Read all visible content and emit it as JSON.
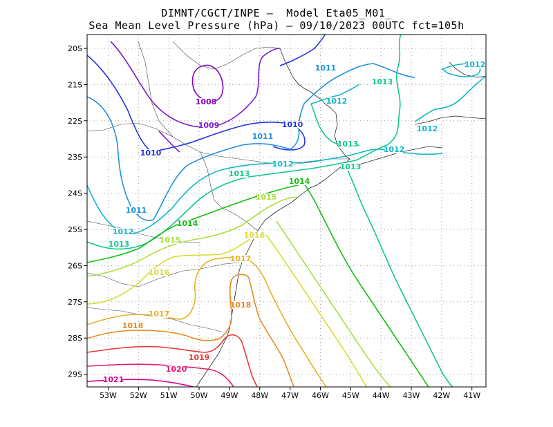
{
  "title_line1": "DIMNT/CGCT/INPE –  Model Eta05_M01_",
  "title_line2": "Sea Mean Level Pressure (hPa) – 09/10/2023 00UTC fct=105h",
  "x_ticks": [
    "53W",
    "52W",
    "51W",
    "50W",
    "49W",
    "48W",
    "47W",
    "46W",
    "45W",
    "44W",
    "43W",
    "42W",
    "41W"
  ],
  "y_ticks": [
    "20S",
    "21S",
    "22S",
    "23S",
    "24S",
    "25S",
    "26S",
    "27S",
    "28S",
    "29S"
  ],
  "contour_levels": [
    {
      "label": "1008",
      "color": "#8a00c8"
    },
    {
      "label": "1009",
      "color": "#7a1ad0"
    },
    {
      "label": "1010",
      "color": "#2233dd"
    },
    {
      "label": "1011",
      "color": "#1f8fe0"
    },
    {
      "label": "1012",
      "color": "#10b8c8"
    },
    {
      "label": "1013",
      "color": "#10c890"
    },
    {
      "label": "1014",
      "color": "#10c010"
    },
    {
      "label": "1015",
      "color": "#a8e040"
    },
    {
      "label": "1016",
      "color": "#d8dc30"
    },
    {
      "label": "1017",
      "color": "#e8b020"
    },
    {
      "label": "1018",
      "color": "#e88820"
    },
    {
      "label": "1019",
      "color": "#e83838"
    },
    {
      "label": "1020",
      "color": "#e81870"
    },
    {
      "label": "1021",
      "color": "#d80090"
    }
  ]
}
